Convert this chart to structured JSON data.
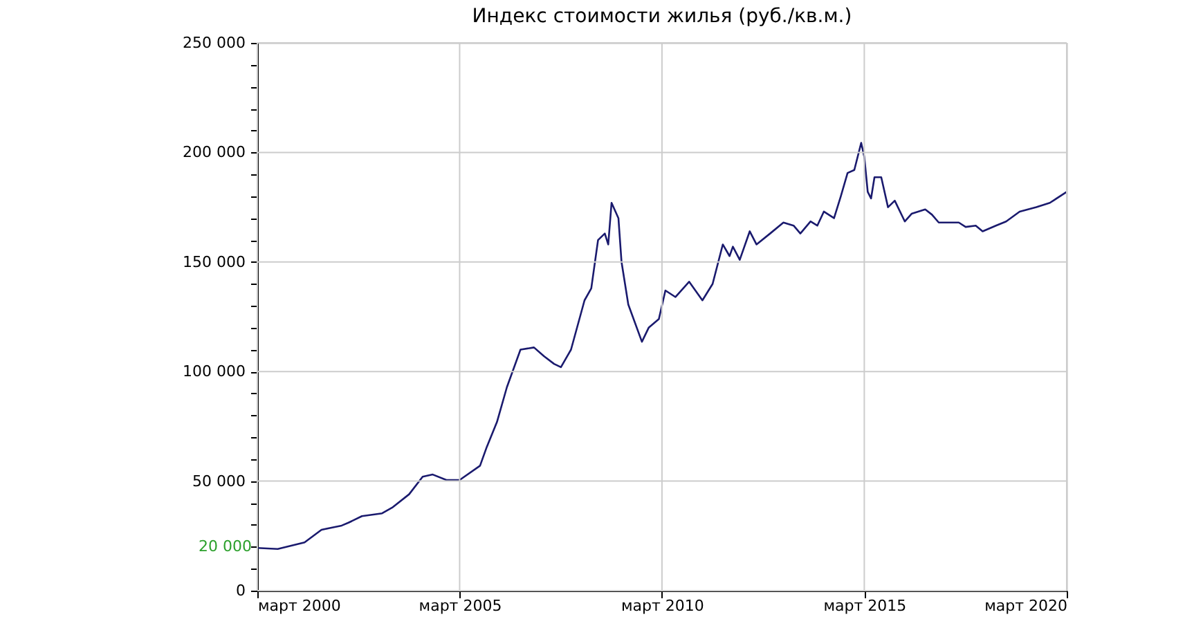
{
  "chart_data": {
    "type": "line",
    "title": "Индекс стоимости жилья (руб./кв.м.)",
    "x": [
      "2000-03",
      "2000-09",
      "2001-05",
      "2001-10",
      "2002-04",
      "2002-06",
      "2002-10",
      "2003-04",
      "2003-07",
      "2003-12",
      "2004-04",
      "2004-07",
      "2004-11",
      "2005-03",
      "2005-09",
      "2005-11",
      "2006-02",
      "2006-05",
      "2006-09",
      "2007-01",
      "2007-04",
      "2007-07",
      "2007-09",
      "2007-12",
      "2008-04",
      "2008-06",
      "2008-08",
      "2008-10",
      "2008-11",
      "2008-12",
      "2009-02",
      "2009-03",
      "2009-05",
      "2009-09",
      "2009-11",
      "2010-02",
      "2010-04",
      "2010-07",
      "2010-11",
      "2011-03",
      "2011-06",
      "2011-09",
      "2011-11",
      "2011-12",
      "2012-02",
      "2012-05",
      "2012-07",
      "2012-11",
      "2013-03",
      "2013-06",
      "2013-08",
      "2013-11",
      "2014-01",
      "2014-03",
      "2014-06",
      "2014-08",
      "2014-10",
      "2014-12",
      "2015-02",
      "2015-03",
      "2015-04",
      "2015-05",
      "2015-06",
      "2015-08",
      "2015-10",
      "2015-12",
      "2016-03",
      "2016-05",
      "2016-09",
      "2016-11",
      "2017-01",
      "2017-07",
      "2017-09",
      "2017-12",
      "2018-02",
      "2018-06",
      "2018-09",
      "2019-01",
      "2019-06",
      "2019-10",
      "2020-03"
    ],
    "series": [
      {
        "color": "#1a1a6e",
        "values": [
          19500,
          19000,
          22000,
          27800,
          29700,
          31000,
          34000,
          35300,
          37900,
          44000,
          52000,
          53000,
          50500,
          50500,
          57000,
          65600,
          77000,
          92800,
          110000,
          111000,
          107000,
          103500,
          102000,
          110000,
          132500,
          138000,
          160000,
          163000,
          158000,
          177000,
          170000,
          150000,
          130600,
          113600,
          120000,
          124000,
          137000,
          134000,
          141000,
          132500,
          140000,
          158000,
          152700,
          157000,
          151000,
          164000,
          158000,
          163000,
          168000,
          166600,
          163000,
          168500,
          166600,
          173000,
          170000,
          180000,
          190600,
          192000,
          204400,
          198000,
          182000,
          179000,
          188700,
          188700,
          175000,
          178000,
          168500,
          172000,
          174000,
          171600,
          168000,
          168000,
          166000,
          166600,
          164000,
          166600,
          168500,
          173000,
          175000,
          177000,
          182000
        ]
      }
    ],
    "xlim": [
      "2000-03",
      "2020-03"
    ],
    "xticks": [
      {
        "value": "2000-03",
        "label": "март 2000"
      },
      {
        "value": "2005-03",
        "label": "март 2005"
      },
      {
        "value": "2010-03",
        "label": "март 2010"
      },
      {
        "value": "2015-03",
        "label": "март 2015"
      },
      {
        "value": "2020-03",
        "label": "март 2020"
      }
    ],
    "ylim": [
      0,
      250000
    ],
    "yticks": [
      0,
      {
        "value": 10000,
        "label": null
      },
      {
        "value": 20000,
        "label": null
      },
      {
        "value": 30000,
        "label": null
      },
      {
        "value": 40000,
        "label": null
      },
      {
        "value": 50000,
        "label": "50 000"
      },
      {
        "value": 60000,
        "label": null
      },
      {
        "value": 70000,
        "label": null
      },
      {
        "value": 80000,
        "label": null
      },
      {
        "value": 90000,
        "label": null
      },
      {
        "value": 100000,
        "label": "100 000"
      },
      {
        "value": 110000,
        "label": null
      },
      {
        "value": 120000,
        "label": null
      },
      {
        "value": 130000,
        "label": null
      },
      {
        "value": 140000,
        "label": null
      },
      {
        "value": 150000,
        "label": "150 000"
      },
      {
        "value": 160000,
        "label": null
      },
      {
        "value": 170000,
        "label": null
      },
      {
        "value": 180000,
        "label": null
      },
      {
        "value": 190000,
        "label": null
      },
      {
        "value": 200000,
        "label": "200 000"
      },
      {
        "value": 210000,
        "label": null
      },
      {
        "value": 220000,
        "label": null
      },
      {
        "value": 230000,
        "label": null
      },
      {
        "value": 240000,
        "label": null
      },
      {
        "value": 250000,
        "label": "250 000"
      }
    ],
    "annotations": [
      {
        "text": "20 000",
        "x": "2000-03",
        "y": 20000
      }
    ],
    "grid": true,
    "marker": "none",
    "line_style": "solid"
  }
}
